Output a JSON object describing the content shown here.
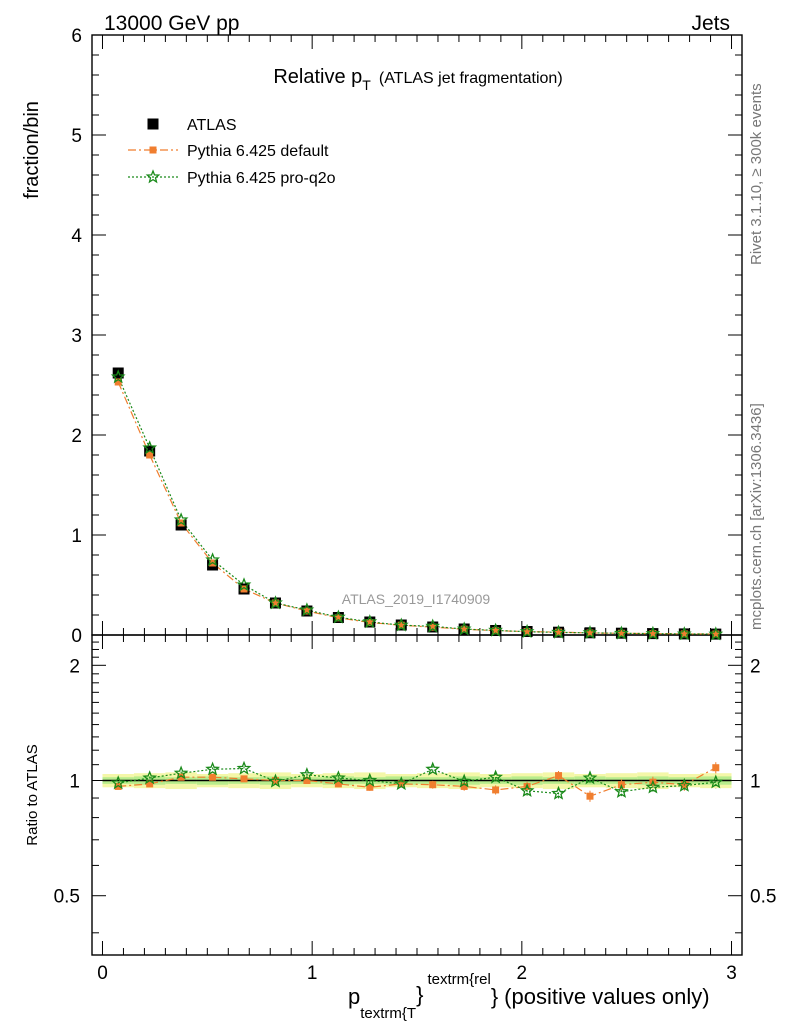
{
  "header": {
    "left": "13000 GeV pp",
    "right": "Jets"
  },
  "title": {
    "main": "Relative p",
    "sub": "T",
    "paren": "(ATLAS jet fragmentation)"
  },
  "side_labels": {
    "rivet": "Rivet 3.1.10, ≥ 300k events",
    "mcplots": "mcplots.cern.ch [arXiv:1306.3436]"
  },
  "watermark": "ATLAS_2019_I1740909",
  "legend": [
    {
      "label": "ATLAS",
      "color": "#000000",
      "marker": "square"
    },
    {
      "label": "Pythia 6.425 default",
      "color": "#f07e2f",
      "marker": "square-small"
    },
    {
      "label": "Pythia 6.425 pro-q2o",
      "color": "#1a8a1a",
      "marker": "star"
    }
  ],
  "xaxis": {
    "label_p": "p",
    "label_sub": "textrm{T",
    "label_sup": "textrm{rel",
    "label_brace": "}",
    "label_rest": "(positive values only)",
    "ticks": [
      "0",
      "1",
      "2",
      "3"
    ]
  },
  "yaxis_main": {
    "label": "fraction/bin",
    "ticks": [
      "0",
      "1",
      "2",
      "3",
      "4",
      "5",
      "6"
    ]
  },
  "yaxis_ratio": {
    "label": "Ratio to ATLAS",
    "ticks": [
      "0.5",
      "1",
      "2"
    ]
  },
  "chart_data": {
    "type": "scatter",
    "x": [
      0.075,
      0.225,
      0.375,
      0.525,
      0.675,
      0.825,
      0.975,
      1.125,
      1.275,
      1.425,
      1.575,
      1.725,
      1.875,
      2.025,
      2.175,
      2.325,
      2.475,
      2.625,
      2.775,
      2.925
    ],
    "xlim": [
      -0.05,
      3.05
    ],
    "ylim": [
      0,
      6
    ],
    "ratio_ylim": [
      0.35,
      2.4
    ],
    "ratio_scale": "log",
    "series": [
      {
        "name": "ATLAS",
        "values": [
          2.62,
          1.84,
          1.1,
          0.7,
          0.46,
          0.32,
          0.24,
          0.175,
          0.13,
          0.1,
          0.08,
          0.06,
          0.045,
          0.035,
          0.028,
          0.022,
          0.018,
          0.014,
          0.011,
          0.009
        ]
      },
      {
        "name": "Pythia 6.425 default",
        "values": [
          2.53,
          1.8,
          1.12,
          0.72,
          0.46,
          0.32,
          0.24,
          0.172,
          0.125,
          0.098,
          0.078,
          0.058,
          0.043,
          0.034,
          0.029,
          0.02,
          0.0175,
          0.0138,
          0.0107,
          0.0097
        ]
      },
      {
        "name": "Pythia 6.425 pro-q2o",
        "values": [
          2.58,
          1.87,
          1.15,
          0.75,
          0.5,
          0.32,
          0.25,
          0.178,
          0.131,
          0.098,
          0.087,
          0.059,
          0.046,
          0.033,
          0.026,
          0.0224,
          0.0169,
          0.0135,
          0.0107,
          0.0089
        ]
      }
    ],
    "ratio_series": [
      {
        "name": "Pythia 6.425 default",
        "values": [
          0.965,
          0.98,
          1.02,
          1.02,
          1.01,
          1.0,
          1.0,
          0.98,
          0.96,
          0.98,
          0.975,
          0.965,
          0.945,
          0.965,
          1.03,
          0.91,
          0.975,
          0.99,
          0.975,
          1.08
        ]
      },
      {
        "name": "Pythia 6.425 pro-q2o",
        "values": [
          0.985,
          1.015,
          1.045,
          1.07,
          1.075,
          0.995,
          1.035,
          1.015,
          1.0,
          0.98,
          1.07,
          0.995,
          1.02,
          0.94,
          0.925,
          1.015,
          0.935,
          0.96,
          0.97,
          0.99
        ]
      }
    ],
    "grid": false
  }
}
